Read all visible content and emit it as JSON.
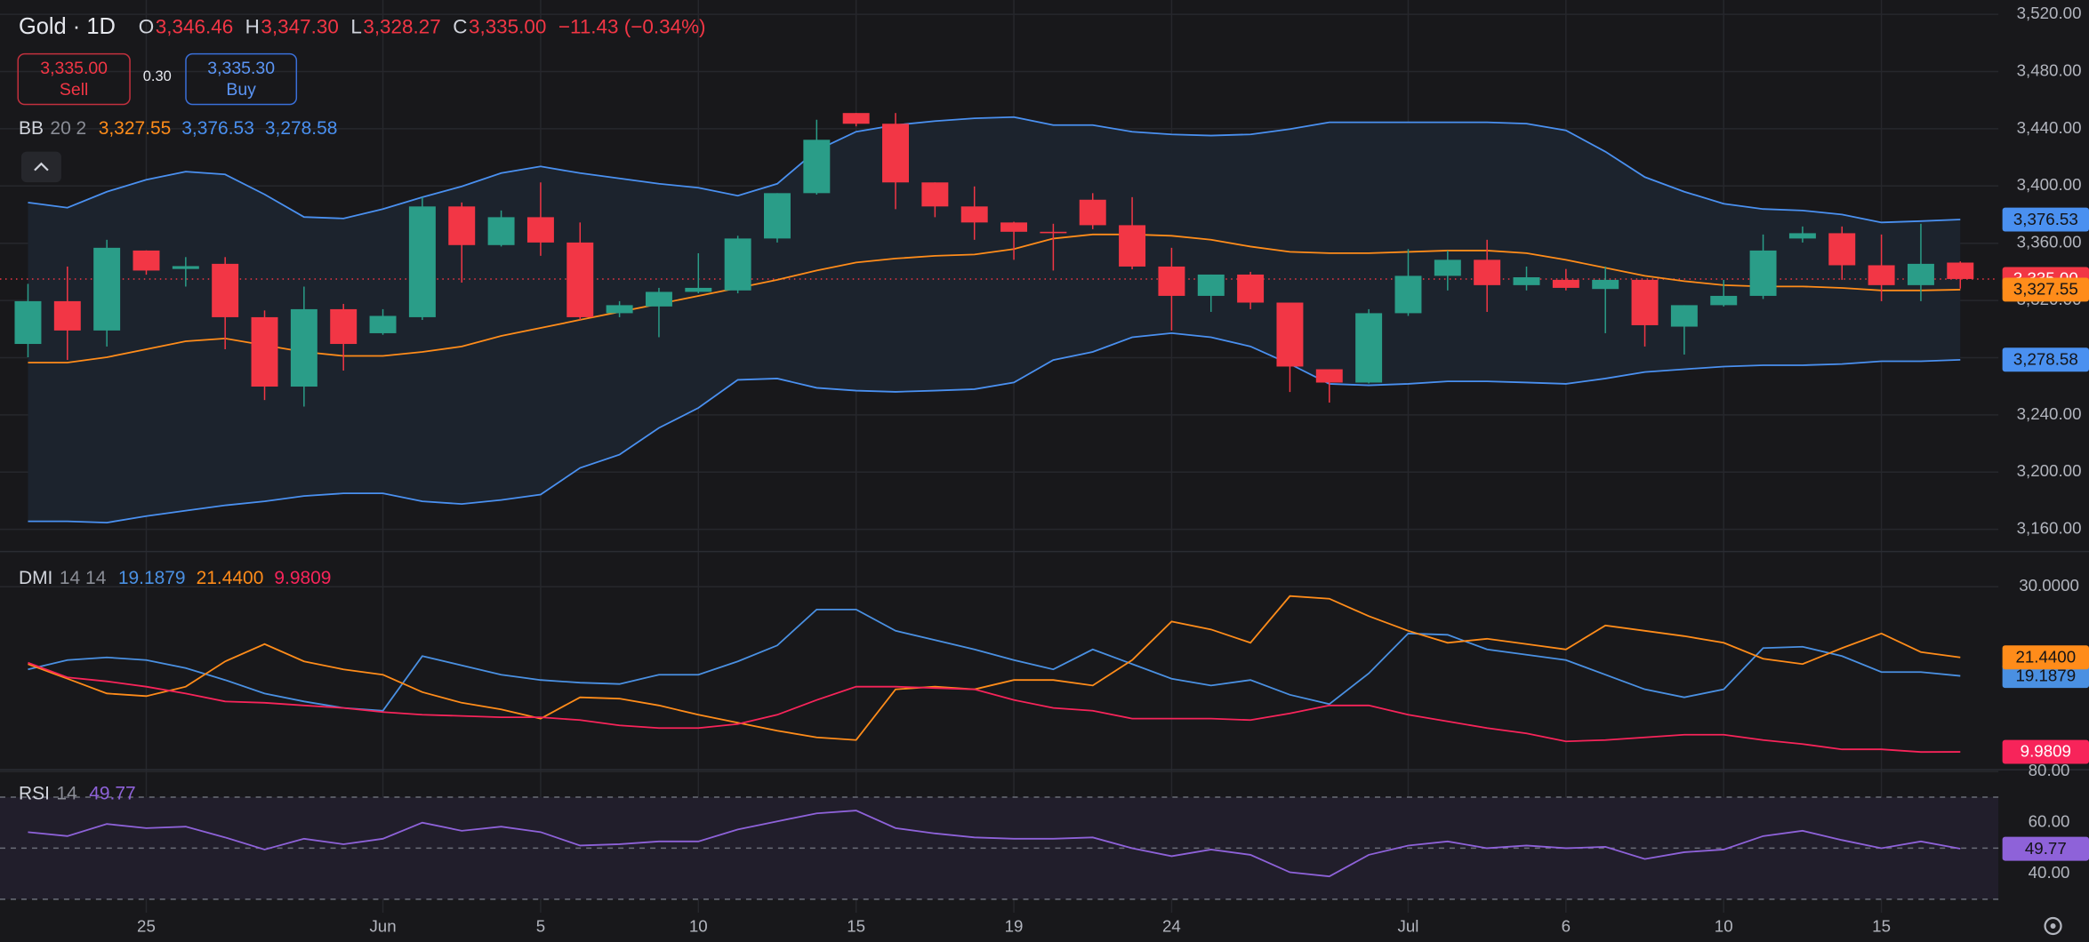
{
  "trade": {
    "sell": {
      "price": "3,335.00",
      "label": "Sell"
    },
    "spread": "0.30",
    "buy": {
      "price": "3,335.30",
      "label": "Buy"
    }
  },
  "chart_data": [
    {
      "type": "candlestick",
      "title": "Gold · 1D",
      "ohlc_legend": [
        {
          "key": "O",
          "label": "3,346.46"
        },
        {
          "key": "H",
          "label": "3,347.30"
        },
        {
          "key": "L",
          "label": "3,328.27"
        },
        {
          "key": "C",
          "label": "3,335.00"
        }
      ],
      "change_label": "−11.43 (−0.34%)",
      "indicator": "BB",
      "params": "20 2",
      "categories": [
        null,
        null,
        null,
        "25",
        null,
        null,
        null,
        null,
        null,
        "Jun",
        null,
        null,
        null,
        "5",
        null,
        null,
        null,
        "10",
        null,
        null,
        null,
        "15",
        null,
        null,
        null,
        "19",
        null,
        null,
        null,
        "24",
        null,
        null,
        null,
        null,
        null,
        "Jul",
        null,
        null,
        null,
        "6",
        null,
        null,
        null,
        "10",
        null,
        null,
        null,
        "15",
        null,
        null
      ],
      "open": [
        3289.6,
        3319.5,
        3299.0,
        3354.9,
        3342.0,
        3345.6,
        3308.3,
        3259.8,
        3313.9,
        3297.1,
        3308.3,
        3385.7,
        3358.7,
        3378.2,
        3360.5,
        3311.1,
        3315.8,
        3326.0,
        3327.0,
        3363.3,
        3395.0,
        3451.0,
        3443.5,
        3402.5,
        3385.7,
        3374.5,
        3368.0,
        3390.4,
        3372.6,
        3343.7,
        3323.2,
        3338.1,
        3318.5,
        3271.9,
        3262.6,
        3311.1,
        3337.2,
        3348.4,
        3330.7,
        3334.4,
        3328.0,
        3334.4,
        3301.7,
        3316.7,
        3323.2,
        3363.3,
        3367.0,
        3344.6,
        3330.7,
        3346.46
      ],
      "high": [
        3331.6,
        3343.7,
        3362.4,
        3355.0,
        3350.3,
        3350.3,
        3313.0,
        3329.7,
        3317.6,
        3313.9,
        3392.2,
        3388.5,
        3382.9,
        3402.5,
        3374.5,
        3319.5,
        3328.8,
        3353.0,
        3365.2,
        3395.0,
        3446.3,
        3451.0,
        3451.0,
        3402.5,
        3399.7,
        3375.0,
        3373.6,
        3395.0,
        3392.2,
        3356.8,
        3338.1,
        3340.0,
        3318.5,
        3271.9,
        3313.9,
        3355.9,
        3354.9,
        3362.4,
        3343.7,
        3342.0,
        3343.7,
        3334.4,
        3316.7,
        3334.4,
        3366.1,
        3371.7,
        3371.7,
        3366.1,
        3373.6,
        3347.3
      ],
      "low": [
        3280.3,
        3278.4,
        3287.8,
        3338.0,
        3329.7,
        3285.9,
        3250.4,
        3245.8,
        3271.0,
        3296.0,
        3306.4,
        3332.5,
        3357.7,
        3351.2,
        3306.4,
        3308.3,
        3294.3,
        3325.0,
        3325.0,
        3360.5,
        3394.0,
        3441.7,
        3383.8,
        3378.2,
        3362.4,
        3348.4,
        3340.9,
        3369.8,
        3341.8,
        3299.0,
        3312.0,
        3313.9,
        3256.0,
        3248.6,
        3262.0,
        3309.2,
        3327.0,
        3312.0,
        3327.0,
        3327.0,
        3297.1,
        3287.8,
        3282.2,
        3315.8,
        3321.0,
        3360.5,
        3334.4,
        3319.5,
        3319.5,
        3328.27
      ],
      "close": [
        3319.5,
        3299.0,
        3356.8,
        3340.9,
        3344.0,
        3308.3,
        3259.8,
        3313.9,
        3289.6,
        3309.2,
        3385.7,
        3358.7,
        3378.2,
        3360.5,
        3308.3,
        3316.7,
        3326.0,
        3328.8,
        3363.3,
        3395.0,
        3432.3,
        3443.5,
        3402.5,
        3385.7,
        3374.5,
        3368.0,
        3367.0,
        3372.6,
        3343.7,
        3323.2,
        3338.1,
        3318.5,
        3273.8,
        3262.6,
        3311.1,
        3337.2,
        3348.4,
        3330.7,
        3336.2,
        3328.8,
        3334.4,
        3302.7,
        3316.7,
        3323.2,
        3354.9,
        3367.0,
        3344.6,
        3330.7,
        3345.6,
        3335.0
      ],
      "last_close_label": "3,335.00",
      "up_color": "#2a9d88",
      "down_color": "#f23645",
      "band_fill": "#1c232d",
      "series": [
        {
          "color": "#ff8c1a",
          "last_label": "3,327.55",
          "values": [
            3276.6,
            3276.6,
            3280.3,
            3285.9,
            3291.5,
            3293.4,
            3288.7,
            3284.0,
            3281.2,
            3281.2,
            3284.0,
            3287.8,
            3295.2,
            3300.8,
            3306.4,
            3312.0,
            3317.6,
            3323.2,
            3328.8,
            3334.4,
            3340.9,
            3346.5,
            3349.3,
            3351.2,
            3352.1,
            3355.9,
            3363.3,
            3366.1,
            3366.1,
            3365.2,
            3362.4,
            3357.7,
            3354.0,
            3353.0,
            3353.0,
            3354.0,
            3354.9,
            3354.9,
            3353.0,
            3348.4,
            3342.8,
            3337.2,
            3333.5,
            3330.7,
            3329.8,
            3329.8,
            3328.8,
            3327.0,
            3327.0,
            3327.55
          ]
        },
        {
          "color": "#4a90f0",
          "last_label": "3,376.53",
          "values": [
            3388.5,
            3384.8,
            3396.0,
            3404.4,
            3410.0,
            3408.1,
            3394.1,
            3378.3,
            3377.3,
            3383.9,
            3392.2,
            3399.7,
            3409.0,
            3413.7,
            3409.0,
            3405.3,
            3401.6,
            3398.8,
            3393.2,
            3401.6,
            3424.9,
            3437.9,
            3442.6,
            3445.4,
            3447.3,
            3448.2,
            3442.6,
            3442.6,
            3437.9,
            3436.1,
            3435.2,
            3436.1,
            3439.8,
            3444.5,
            3444.5,
            3444.5,
            3444.5,
            3444.5,
            3443.6,
            3438.9,
            3424.0,
            3406.2,
            3396.0,
            3387.6,
            3383.9,
            3382.9,
            3380.1,
            3374.5,
            3375.4,
            3376.53
          ]
        },
        {
          "color": "#4a90f0",
          "last_label": "3,278.58",
          "values": [
            3165.6,
            3165.6,
            3164.7,
            3169.3,
            3173.1,
            3176.8,
            3179.6,
            3183.3,
            3185.2,
            3185.2,
            3179.6,
            3177.7,
            3180.5,
            3184.3,
            3202.9,
            3212.2,
            3230.9,
            3244.9,
            3264.5,
            3265.4,
            3258.9,
            3257.0,
            3256.1,
            3257.0,
            3258.0,
            3262.6,
            3278.4,
            3284.0,
            3294.3,
            3297.1,
            3294.3,
            3287.8,
            3275.6,
            3261.7,
            3260.7,
            3261.7,
            3263.5,
            3263.5,
            3262.6,
            3261.7,
            3265.4,
            3270.0,
            3271.9,
            3273.8,
            3274.7,
            3274.7,
            3275.6,
            3277.5,
            3277.5,
            3278.58
          ]
        }
      ],
      "ylim": [
        3145,
        3530
      ],
      "yticks": [
        {
          "value": 3160,
          "label": "3,160.00"
        },
        {
          "value": 3200,
          "label": "3,200.00"
        },
        {
          "value": 3240,
          "label": "3,240.00"
        },
        {
          "value": 3280,
          "label": "3,280.00"
        },
        {
          "value": 3320,
          "label": "3,320.00"
        },
        {
          "value": 3360,
          "label": "3,360.00"
        },
        {
          "value": 3400,
          "label": "3,400.00"
        },
        {
          "value": 3440,
          "label": "3,440.00"
        },
        {
          "value": 3480,
          "label": "3,480.00"
        },
        {
          "value": 3520,
          "label": "3,520.00"
        }
      ],
      "grid": true
    },
    {
      "type": "line",
      "indicator": "DMI",
      "params": "14 14",
      "series": [
        {
          "color": "#4a90e2",
          "last_label": "19.1879",
          "values": [
            19.98,
            21.11,
            21.44,
            21.11,
            20.14,
            18.69,
            17.07,
            16.1,
            15.3,
            14.97,
            21.6,
            20.47,
            19.34,
            18.69,
            18.37,
            18.21,
            19.34,
            19.34,
            20.95,
            22.89,
            27.25,
            27.25,
            24.66,
            23.54,
            22.41,
            21.11,
            19.98,
            22.41,
            20.63,
            18.85,
            18.04,
            18.69,
            16.91,
            15.78,
            19.5,
            24.34,
            24.18,
            22.41,
            21.76,
            21.11,
            19.34,
            17.56,
            16.59,
            17.56,
            22.57,
            22.73,
            21.6,
            19.66,
            19.66,
            19.1879
          ]
        },
        {
          "color": "#ff8c1a",
          "last_label": "21.4400",
          "values": [
            20.63,
            18.85,
            17.07,
            16.75,
            17.88,
            20.95,
            23.05,
            20.95,
            19.98,
            19.34,
            17.23,
            15.94,
            15.13,
            14.01,
            16.59,
            16.43,
            15.62,
            14.49,
            13.52,
            12.55,
            11.74,
            11.42,
            17.56,
            17.88,
            17.56,
            18.69,
            18.69,
            18.04,
            21.11,
            25.8,
            24.83,
            23.21,
            28.87,
            28.55,
            26.44,
            24.66,
            23.21,
            23.7,
            23.05,
            22.41,
            25.31,
            24.66,
            24.02,
            23.21,
            21.28,
            20.63,
            22.57,
            24.34,
            22.09,
            21.44
          ]
        },
        {
          "color": "#f7245a",
          "last_label": "9.9809",
          "values": [
            20.79,
            19.01,
            18.53,
            17.88,
            17.07,
            16.1,
            15.94,
            15.62,
            15.3,
            14.81,
            14.49,
            14.33,
            14.17,
            14.17,
            13.84,
            13.2,
            12.87,
            12.87,
            13.36,
            14.49,
            16.27,
            17.88,
            17.88,
            17.72,
            17.56,
            16.27,
            15.3,
            14.97,
            14.01,
            14.01,
            14.01,
            13.84,
            14.65,
            15.62,
            15.62,
            14.49,
            13.68,
            12.87,
            12.23,
            11.26,
            11.42,
            11.74,
            12.07,
            12.07,
            11.42,
            10.94,
            10.29,
            10.29,
            9.97,
            9.9809
          ]
        }
      ],
      "ylim": [
        7.9,
        34.2
      ],
      "yticks": [
        {
          "value": 30,
          "label": "30.0000"
        }
      ],
      "grid": true
    },
    {
      "type": "line",
      "indicator": "RSI",
      "params": "14",
      "levels": [
        30,
        50,
        70
      ],
      "band_fill": "#211e2b",
      "series": [
        {
          "color": "#8e62d9",
          "last_label": "49.77",
          "values": [
            56.32,
            54.74,
            59.47,
            57.89,
            58.42,
            54.21,
            49.47,
            53.68,
            51.58,
            53.68,
            60.0,
            56.84,
            58.42,
            56.32,
            51.05,
            51.58,
            52.63,
            52.63,
            57.37,
            60.53,
            63.68,
            64.74,
            57.89,
            55.79,
            54.21,
            53.68,
            53.68,
            54.21,
            50.0,
            46.84,
            49.47,
            47.37,
            40.53,
            38.95,
            47.37,
            51.05,
            52.63,
            50.0,
            51.05,
            50.0,
            50.53,
            45.79,
            48.42,
            49.47,
            54.74,
            56.84,
            53.16,
            50.0,
            52.63,
            49.77
          ]
        }
      ],
      "ylim": [
        24.7,
        80.5
      ],
      "yticks": [
        {
          "value": 40,
          "label": "40.00"
        },
        {
          "value": 60,
          "label": "60.00"
        },
        {
          "value": 80,
          "label": "80.00"
        }
      ],
      "grid": true
    }
  ]
}
